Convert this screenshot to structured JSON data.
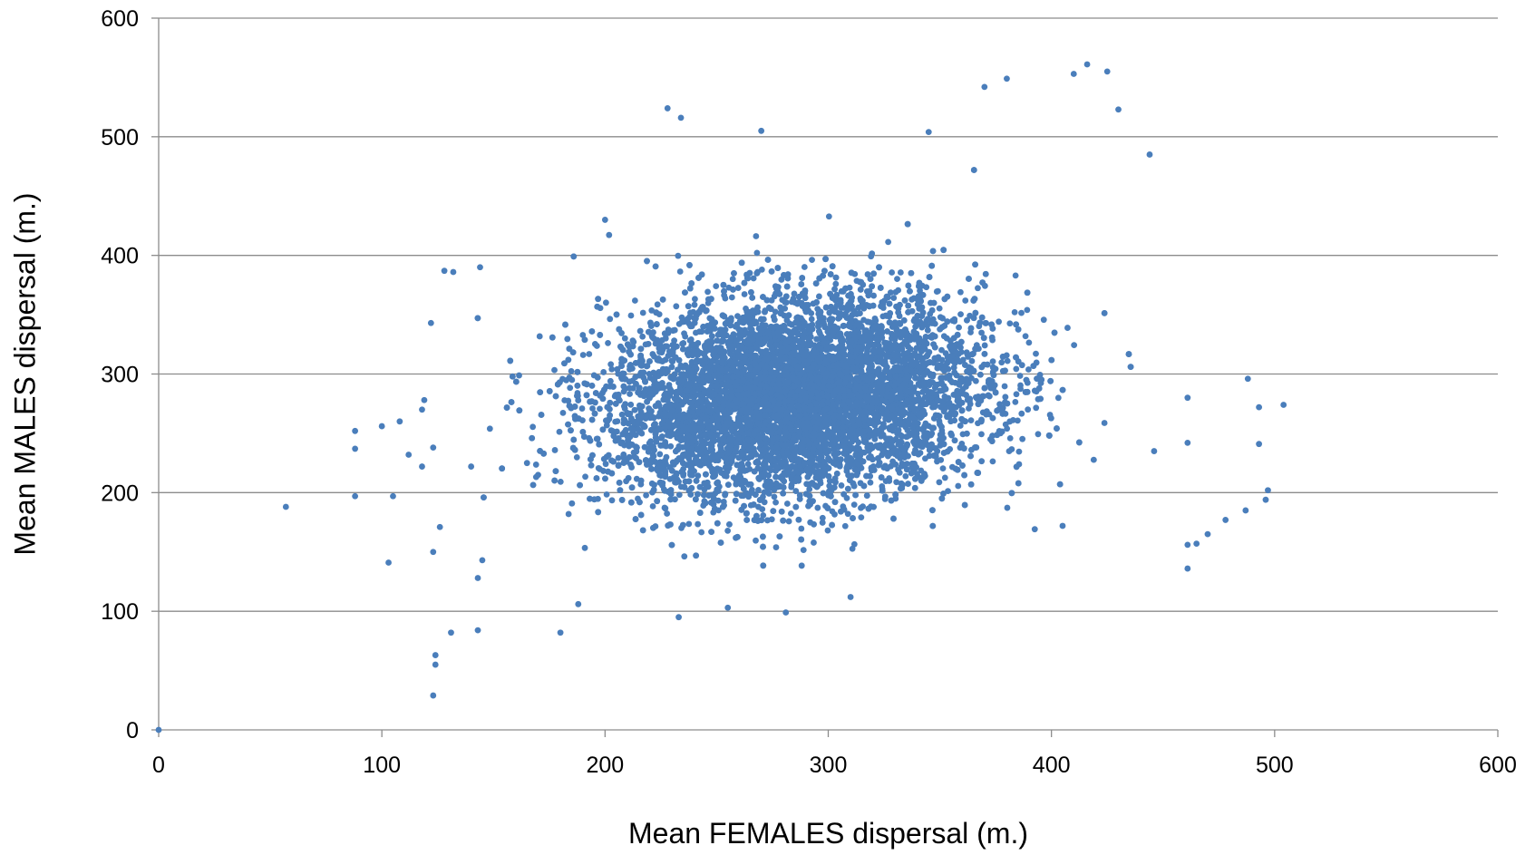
{
  "chart_data": {
    "type": "scatter",
    "xlabel": "Mean  FEMALES   dispersal  (m.)",
    "ylabel": "Mean   MALES   dispersal  (m.)",
    "xlim": [
      0,
      600
    ],
    "ylim": [
      0,
      600
    ],
    "xticks": [
      0,
      100,
      200,
      300,
      400,
      500,
      600
    ],
    "yticks": [
      0,
      100,
      200,
      300,
      400,
      500,
      600
    ],
    "grid": "horizontal",
    "legend": "none",
    "marker_color": "#4a7ebb",
    "series": [
      {
        "values_note": "dense cloud of several thousand points; listed points are representative readings",
        "points": [
          [
            0,
            0
          ],
          [
            57,
            188
          ],
          [
            88,
            197
          ],
          [
            88,
            237
          ],
          [
            88,
            252
          ],
          [
            100,
            256
          ],
          [
            103,
            141
          ],
          [
            105,
            197
          ],
          [
            108,
            260
          ],
          [
            112,
            232
          ],
          [
            118,
            222
          ],
          [
            118,
            270
          ],
          [
            119,
            278
          ],
          [
            122,
            343
          ],
          [
            123,
            238
          ],
          [
            123,
            150
          ],
          [
            123,
            29
          ],
          [
            124,
            55
          ],
          [
            124,
            63
          ],
          [
            126,
            171
          ],
          [
            128,
            387
          ],
          [
            131,
            82
          ],
          [
            132,
            386
          ],
          [
            140,
            222
          ],
          [
            143,
            84
          ],
          [
            143,
            128
          ],
          [
            144,
            390
          ],
          [
            145,
            143
          ],
          [
            180,
            82
          ],
          [
            188,
            106
          ],
          [
            200,
            430
          ],
          [
            228,
            524
          ],
          [
            233,
            95
          ],
          [
            234,
            516
          ],
          [
            255,
            103
          ],
          [
            270,
            505
          ],
          [
            281,
            99
          ],
          [
            310,
            112
          ],
          [
            345,
            504
          ],
          [
            370,
            542
          ],
          [
            380,
            549
          ],
          [
            405,
            172
          ],
          [
            410,
            553
          ],
          [
            416,
            561
          ],
          [
            425,
            555
          ],
          [
            430,
            523
          ],
          [
            444,
            485
          ],
          [
            446,
            235
          ],
          [
            461,
            136
          ],
          [
            461,
            156
          ],
          [
            461,
            242
          ],
          [
            461,
            280
          ],
          [
            465,
            157
          ],
          [
            470,
            165
          ],
          [
            478,
            177
          ],
          [
            487,
            185
          ],
          [
            488,
            296
          ],
          [
            493,
            241
          ],
          [
            493,
            272
          ],
          [
            496,
            194
          ],
          [
            497,
            202
          ],
          [
            504,
            274
          ]
        ]
      }
    ],
    "cloud": {
      "center_x": 285,
      "center_y": 280,
      "spread_x": 42,
      "spread_y": 42
    }
  }
}
